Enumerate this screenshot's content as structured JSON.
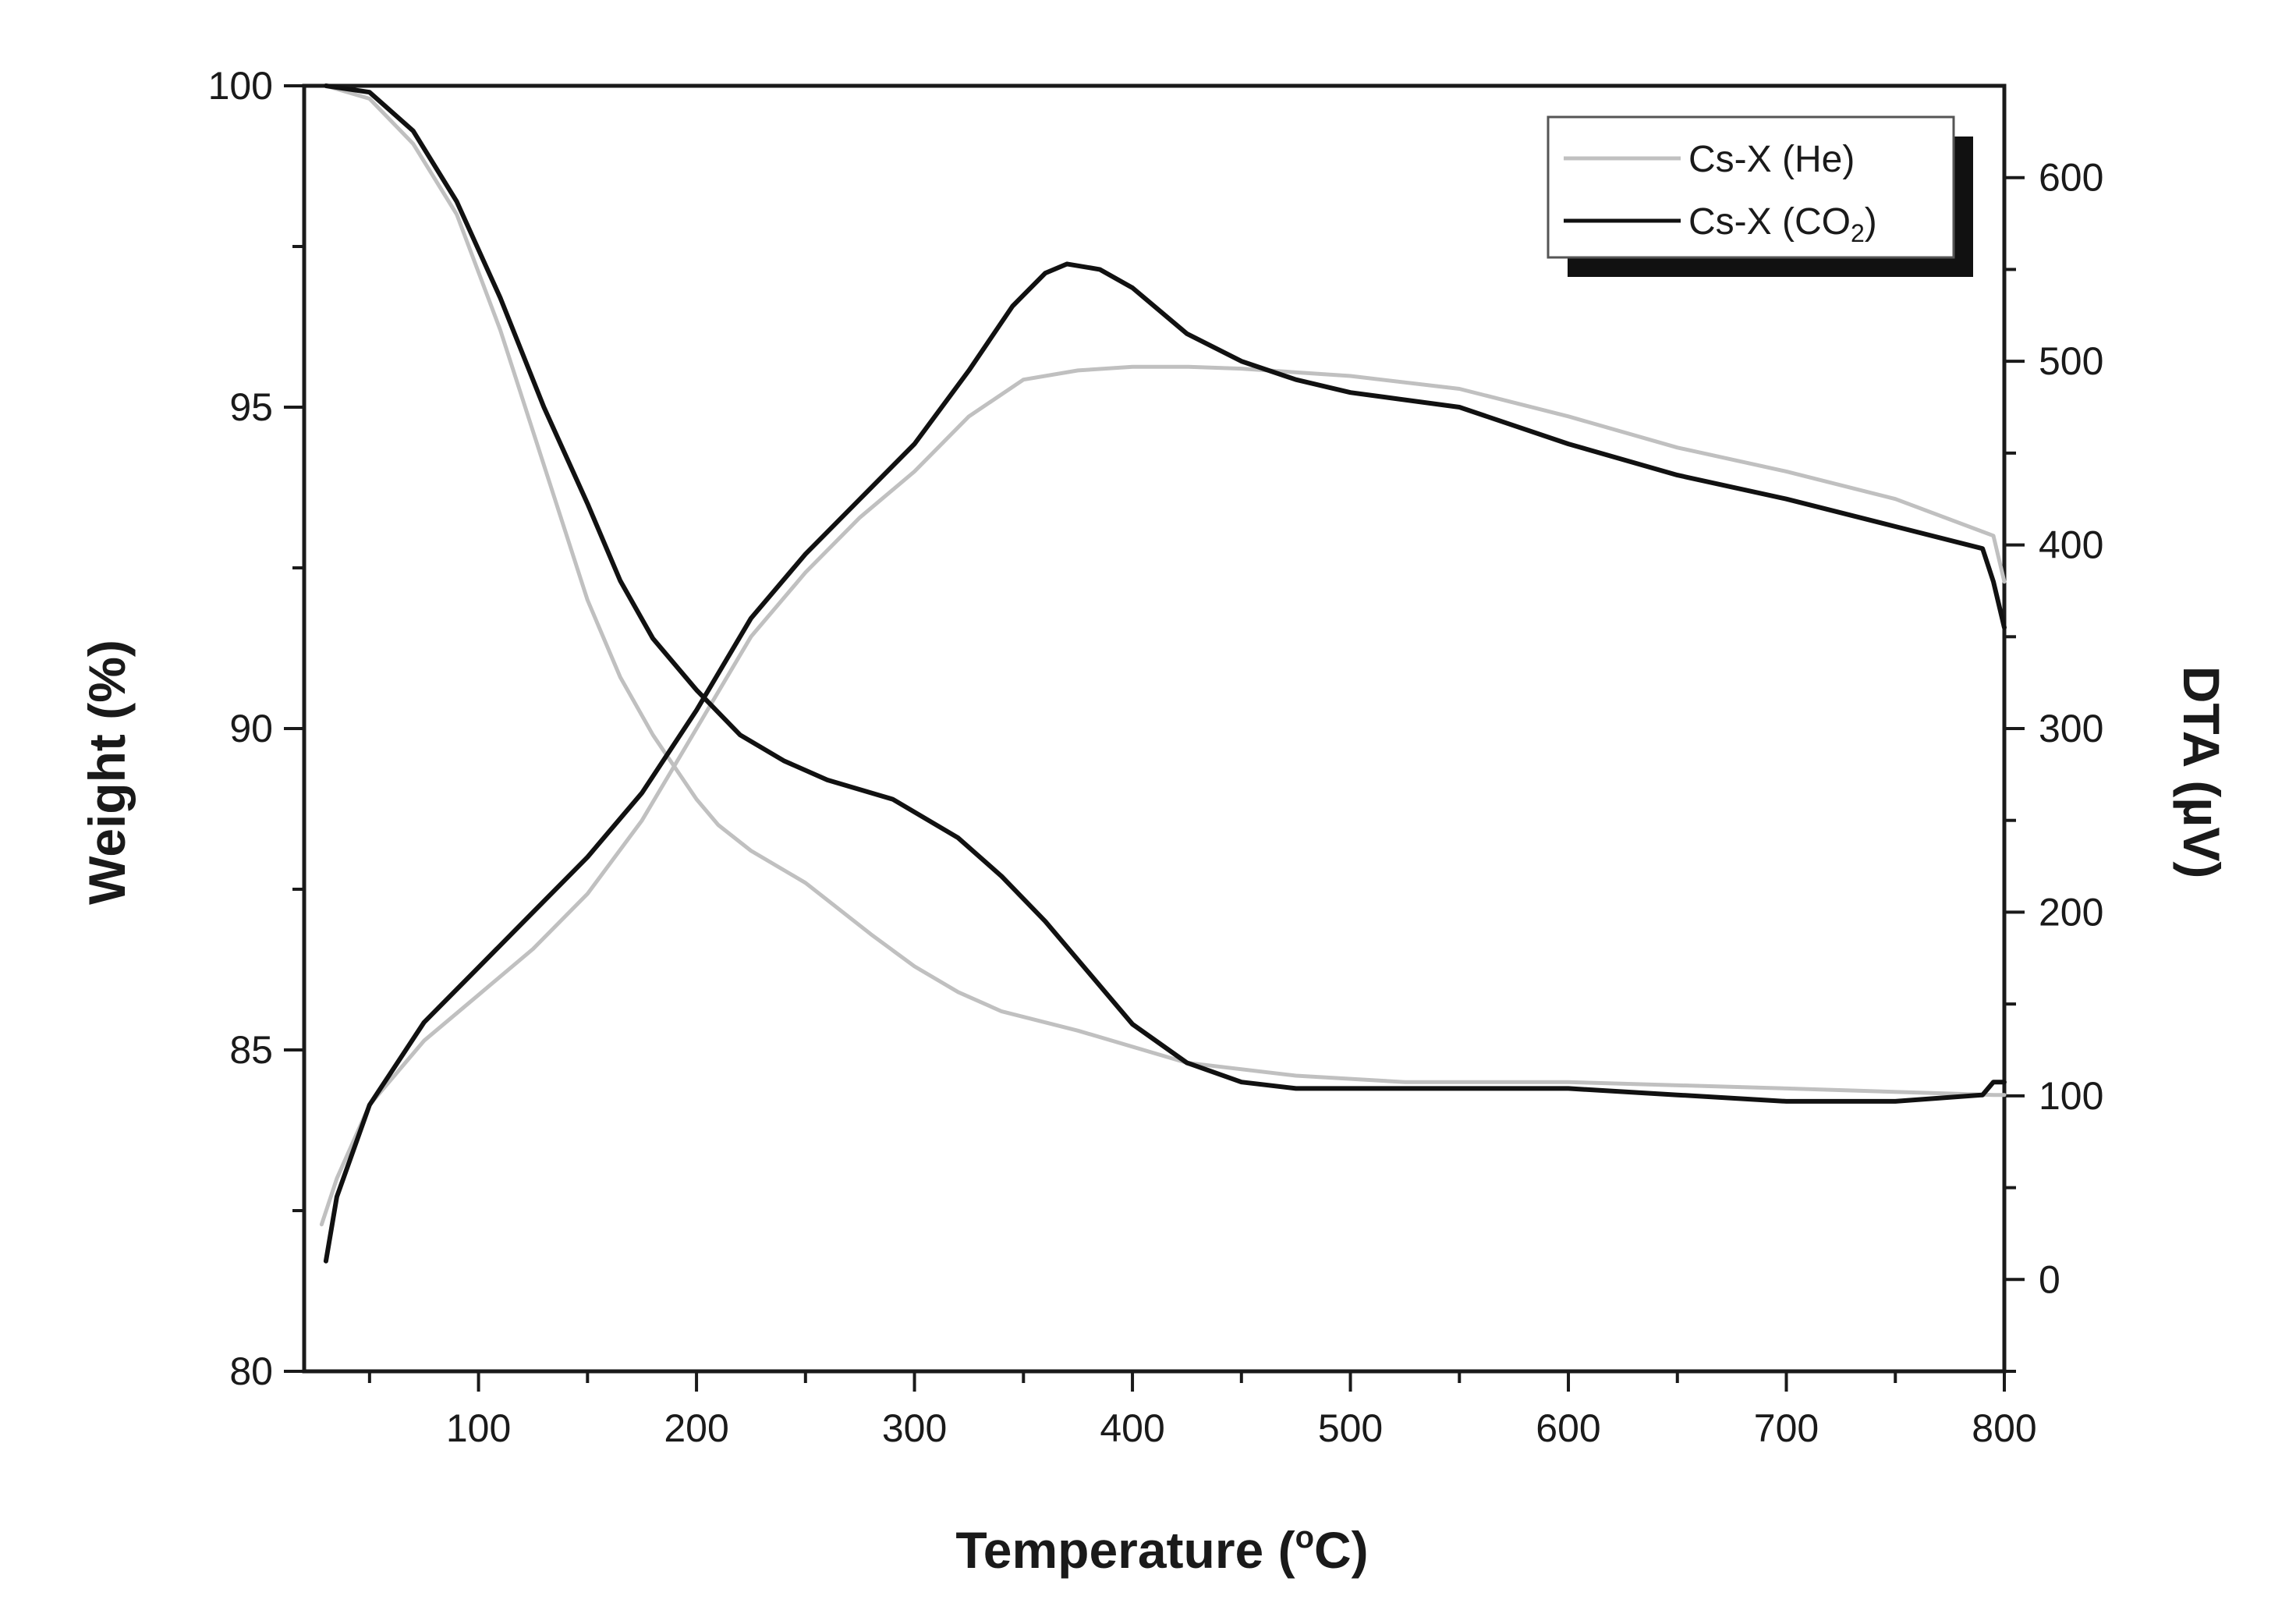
{
  "chart_data": {
    "type": "line",
    "xlabel": "Temperature (°C)",
    "xlabel_parts": {
      "before": "Temperature (",
      "degree": "o",
      "unit": "C)"
    },
    "ylabel_left": "Weight (%)",
    "ylabel_right": "DTA (µV)",
    "xlim": [
      20,
      800
    ],
    "ylim_left": [
      80,
      100
    ],
    "ylim_right": [
      -50,
      650
    ],
    "x_ticks": [
      100,
      200,
      300,
      400,
      500,
      600,
      700,
      800
    ],
    "x_minor_ticks": [
      50,
      150,
      250,
      350,
      450,
      550,
      650,
      750
    ],
    "y_left_ticks": [
      80,
      85,
      90,
      95,
      100
    ],
    "y_right_ticks": [
      0,
      100,
      200,
      300,
      400,
      500,
      600
    ],
    "legend": {
      "position": "top-right",
      "entries": [
        {
          "label_main": "Cs-X (He)",
          "label_sub": "",
          "label_tail": "",
          "color": "#c0c0c0"
        },
        {
          "label_main": "Cs-X (CO",
          "label_sub": "2",
          "label_tail": ")",
          "color": "#111111"
        }
      ]
    },
    "series": [
      {
        "name": "Cs-X (He) weight",
        "axis": "left",
        "color": "#c0c0c0",
        "x": [
          30,
          50,
          70,
          90,
          110,
          130,
          150,
          165,
          180,
          190,
          200,
          210,
          225,
          250,
          280,
          300,
          320,
          340,
          375,
          425,
          475,
          525,
          600,
          700,
          795,
          800
        ],
        "y": [
          100,
          99.8,
          99.1,
          98.0,
          96.2,
          94.1,
          92.0,
          90.8,
          89.9,
          89.4,
          88.9,
          88.5,
          88.1,
          87.6,
          86.8,
          86.3,
          85.9,
          85.6,
          85.3,
          84.8,
          84.6,
          84.5,
          84.5,
          84.4,
          84.3,
          84.3
        ]
      },
      {
        "name": "Cs-X (CO2) weight",
        "axis": "left",
        "color": "#111111",
        "x": [
          30,
          50,
          70,
          90,
          110,
          130,
          150,
          165,
          180,
          200,
          220,
          240,
          260,
          290,
          320,
          340,
          360,
          380,
          400,
          425,
          450,
          475,
          500,
          550,
          600,
          650,
          700,
          750,
          790,
          795,
          800
        ],
        "y": [
          100,
          99.9,
          99.3,
          98.2,
          96.7,
          95.0,
          93.5,
          92.3,
          91.4,
          90.6,
          89.9,
          89.5,
          89.2,
          88.9,
          88.3,
          87.7,
          87.0,
          86.2,
          85.4,
          84.8,
          84.5,
          84.4,
          84.4,
          84.4,
          84.4,
          84.3,
          84.2,
          84.2,
          84.3,
          84.5,
          84.5
        ]
      },
      {
        "name": "Cs-X (He) DTA",
        "axis": "right",
        "color": "#c0c0c0",
        "x": [
          28,
          35,
          50,
          75,
          100,
          125,
          150,
          175,
          200,
          225,
          250,
          275,
          300,
          325,
          350,
          375,
          400,
          425,
          450,
          500,
          550,
          600,
          650,
          700,
          750,
          795,
          800
        ],
        "y": [
          30,
          55,
          95,
          130,
          155,
          180,
          210,
          250,
          300,
          350,
          385,
          415,
          440,
          470,
          490,
          495,
          497,
          497,
          496,
          492,
          485,
          470,
          453,
          440,
          425,
          405,
          380
        ]
      },
      {
        "name": "Cs-X (CO2) DTA",
        "axis": "right",
        "color": "#111111",
        "x": [
          30,
          35,
          50,
          75,
          100,
          125,
          150,
          175,
          200,
          225,
          250,
          275,
          300,
          325,
          345,
          360,
          370,
          385,
          400,
          425,
          450,
          475,
          500,
          550,
          600,
          650,
          700,
          750,
          790,
          795,
          800
        ],
        "y": [
          10,
          45,
          95,
          140,
          170,
          200,
          230,
          265,
          310,
          360,
          395,
          425,
          455,
          495,
          530,
          548,
          553,
          550,
          540,
          515,
          500,
          490,
          483,
          475,
          455,
          438,
          425,
          410,
          398,
          380,
          355
        ]
      }
    ]
  }
}
